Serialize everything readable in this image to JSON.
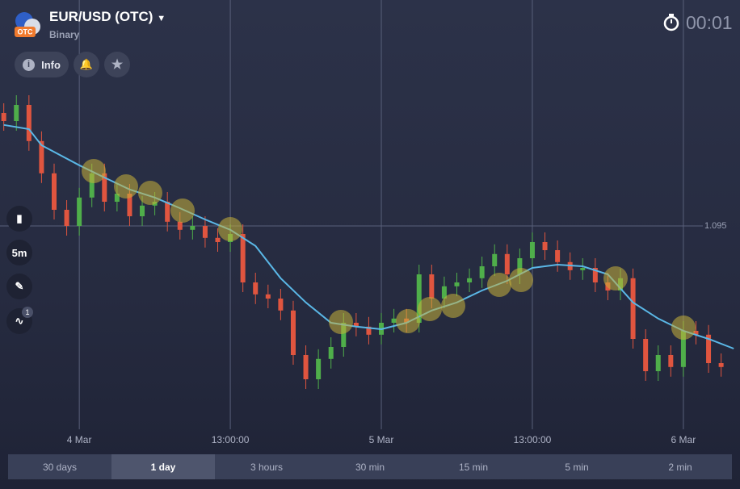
{
  "header": {
    "title": "EUR/USD (OTC)",
    "subtitle": "Binary",
    "badge": "OTC",
    "timer": "00:01"
  },
  "toolbar": {
    "info": "Info",
    "interval": "5m",
    "indicator_count": "1"
  },
  "chart_data": {
    "type": "candlestick",
    "x": [
      -6,
      -5,
      -4,
      -3,
      -2,
      -1,
      0,
      1,
      2,
      3,
      4,
      5,
      6,
      7,
      8,
      9,
      10,
      11,
      12,
      13,
      14,
      15,
      16,
      17,
      18,
      19,
      20,
      21,
      22,
      23,
      24,
      25,
      26,
      27,
      28,
      29,
      30,
      31,
      32,
      33,
      34,
      35,
      36,
      37,
      38,
      39,
      40,
      41,
      42,
      43,
      44,
      45,
      46,
      47,
      48,
      49,
      50,
      51
    ],
    "open": [
      1.0985,
      1.09825,
      1.09875,
      1.09763,
      1.09663,
      1.0955,
      1.095,
      1.09588,
      1.09663,
      1.09575,
      1.096,
      1.0953,
      1.09563,
      1.09575,
      1.09513,
      1.09488,
      1.095,
      1.09463,
      1.0945,
      1.09475,
      1.09325,
      1.09288,
      1.09275,
      1.09238,
      1.091,
      1.09025,
      1.09088,
      1.09125,
      1.092,
      1.09188,
      1.09163,
      1.092,
      1.09213,
      1.092,
      1.0935,
      1.09275,
      1.09313,
      1.09325,
      1.09338,
      1.09375,
      1.09413,
      1.0935,
      1.094,
      1.0945,
      1.09425,
      1.09388,
      1.09363,
      1.0937,
      1.09325,
      1.093,
      1.09338,
      1.0915,
      1.0905,
      1.091,
      1.09063,
      1.09175,
      1.09163,
      1.09075
    ],
    "high": [
      1.0988,
      1.09905,
      1.09905,
      1.09793,
      1.09693,
      1.0958,
      1.09618,
      1.09693,
      1.09693,
      1.0963,
      1.0963,
      1.09593,
      1.09605,
      1.09605,
      1.09543,
      1.0953,
      1.0953,
      1.09493,
      1.09505,
      1.09505,
      1.09355,
      1.09318,
      1.09305,
      1.09268,
      1.0913,
      1.09118,
      1.09155,
      1.0923,
      1.0923,
      1.09218,
      1.0923,
      1.09243,
      1.09243,
      1.0938,
      1.0938,
      1.09343,
      1.09355,
      1.09368,
      1.09405,
      1.09443,
      1.09443,
      1.0943,
      1.0948,
      1.0948,
      1.09455,
      1.09418,
      1.094,
      1.094,
      1.09355,
      1.09368,
      1.09368,
      1.0918,
      1.0913,
      1.0913,
      1.09205,
      1.09205,
      1.09193,
      1.09105
    ],
    "low": [
      1.09795,
      1.09795,
      1.09733,
      1.09633,
      1.0952,
      1.0947,
      1.0947,
      1.09558,
      1.09545,
      1.09545,
      1.095,
      1.095,
      1.09533,
      1.09483,
      1.09458,
      1.09458,
      1.09433,
      1.0942,
      1.0942,
      1.09295,
      1.09258,
      1.09245,
      1.09208,
      1.0907,
      1.08995,
      1.08995,
      1.09058,
      1.09095,
      1.09158,
      1.09133,
      1.09133,
      1.0917,
      1.0917,
      1.0917,
      1.09245,
      1.09245,
      1.09283,
      1.09295,
      1.09308,
      1.09345,
      1.0932,
      1.0932,
      1.0937,
      1.09395,
      1.09358,
      1.09333,
      1.09333,
      1.09295,
      1.0927,
      1.0927,
      1.0912,
      1.0902,
      1.0902,
      1.09033,
      1.09033,
      1.09133,
      1.09045,
      1.09033
    ],
    "close": [
      1.09825,
      1.09875,
      1.09763,
      1.09663,
      1.0955,
      1.095,
      1.09588,
      1.09663,
      1.09575,
      1.096,
      1.0953,
      1.09563,
      1.09575,
      1.09513,
      1.09488,
      1.095,
      1.09463,
      1.0945,
      1.09475,
      1.09325,
      1.09288,
      1.09275,
      1.09238,
      1.091,
      1.09025,
      1.09088,
      1.09125,
      1.092,
      1.09188,
      1.09163,
      1.092,
      1.09213,
      1.092,
      1.0935,
      1.09275,
      1.09313,
      1.09325,
      1.09338,
      1.09375,
      1.09413,
      1.0935,
      1.094,
      1.0945,
      1.09425,
      1.09388,
      1.09363,
      1.0937,
      1.09325,
      1.093,
      1.09338,
      1.0915,
      1.0905,
      1.091,
      1.09063,
      1.09175,
      1.09163,
      1.09075,
      1.09063
    ],
    "up_color": "#4fae4a",
    "down_color": "#e0553f",
    "overlay": {
      "color": "#5ab7e6",
      "x": [
        -6,
        -4,
        -3,
        0,
        2,
        4,
        6,
        8,
        10,
        12,
        14,
        16,
        18,
        20,
        22,
        24,
        26,
        28,
        30,
        32,
        34,
        36,
        38,
        40,
        42,
        44,
        46,
        48,
        50,
        52
      ],
      "values": [
        1.09813,
        1.098,
        1.0975,
        1.09688,
        1.0965,
        1.09613,
        1.09588,
        1.09555,
        1.0952,
        1.09488,
        1.09438,
        1.09338,
        1.09263,
        1.092,
        1.09188,
        1.0918,
        1.092,
        1.09238,
        1.09263,
        1.093,
        1.0933,
        1.0937,
        1.0938,
        1.09375,
        1.0935,
        1.09263,
        1.09213,
        1.09175,
        1.0915,
        1.0912
      ]
    },
    "xlim": [
      -6.3,
      52.5
    ],
    "ylim": [
      1.0887,
      1.0995
    ],
    "xticks": [
      {
        "value": 0,
        "label": "4 Mar"
      },
      {
        "value": 12,
        "label": "13:00:00"
      },
      {
        "value": 24,
        "label": "5 Mar"
      },
      {
        "value": 36,
        "label": "13:00:00"
      },
      {
        "value": 48,
        "label": "6 Mar"
      }
    ],
    "yticks": [
      1.095
    ],
    "grid": true
  },
  "timeframes": {
    "options": [
      "30 days",
      "1 day",
      "3 hours",
      "30 min",
      "15 min",
      "5 min",
      "2 min"
    ],
    "selected": 1
  }
}
